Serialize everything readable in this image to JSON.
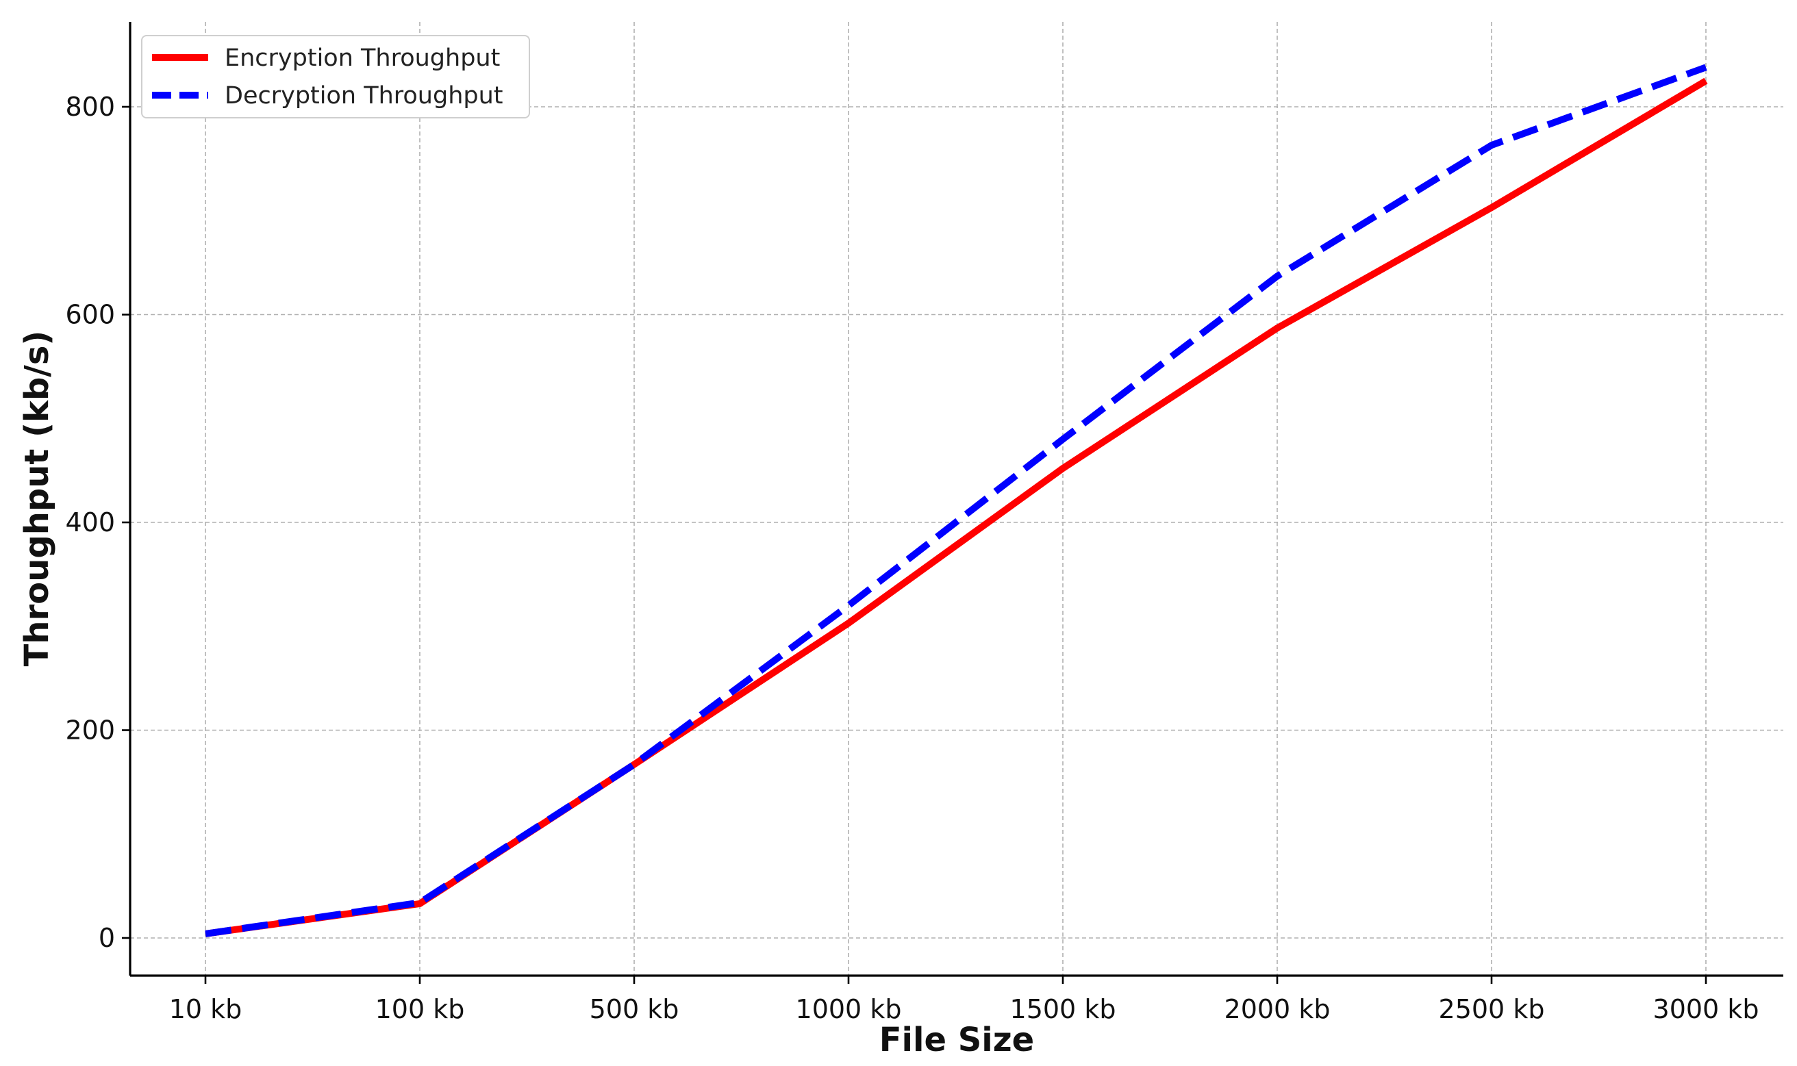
{
  "chart_data": {
    "type": "line",
    "title": "",
    "xlabel": "File Size",
    "ylabel": "Throughput (kb/s)",
    "categories": [
      "10 kb",
      "100 kb",
      "500 kb",
      "1000 kb",
      "1500 kb",
      "2000 kb",
      "2500 kb",
      "3000 kb"
    ],
    "yticks": [
      0,
      200,
      400,
      600,
      800
    ],
    "ylim": [
      -38,
      880
    ],
    "grid": true,
    "legend_position": "top-left",
    "series": [
      {
        "name": "Encryption Throughput",
        "color": "#ff0000",
        "style": "solid",
        "values": [
          4,
          33,
          167,
          303,
          452,
          587,
          703,
          825
        ]
      },
      {
        "name": "Decryption Throughput",
        "color": "#0000ff",
        "style": "dashed",
        "values": [
          4,
          34,
          167,
          320,
          480,
          637,
          763,
          838
        ]
      }
    ]
  }
}
